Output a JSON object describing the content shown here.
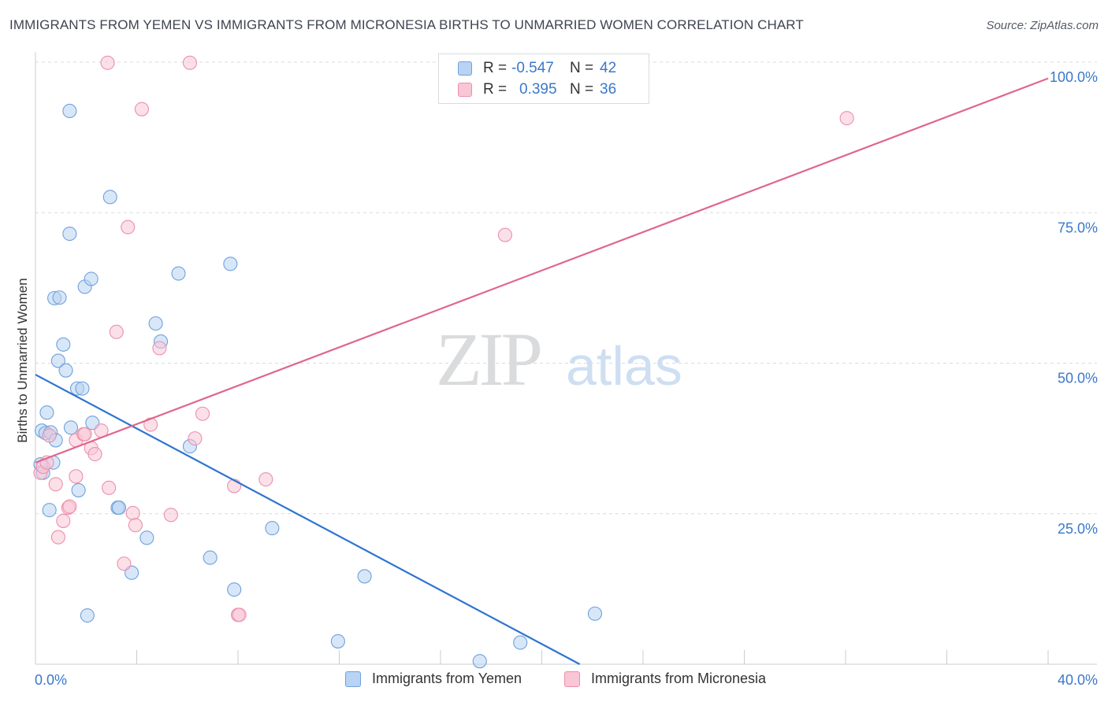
{
  "title": "IMMIGRANTS FROM YEMEN VS IMMIGRANTS FROM MICRONESIA BIRTHS TO UNMARRIED WOMEN CORRELATION CHART",
  "source": "Source: ZipAtlas.com",
  "watermark": {
    "zip": "ZIP",
    "atlas": "atlas"
  },
  "colors": {
    "yemen_fill": "#b8d3f3",
    "yemen_stroke": "#6fa1db",
    "yemen_line": "#2f74d0",
    "micronesia_fill": "#f8c6d5",
    "micronesia_stroke": "#ec8fae",
    "micronesia_line": "#e0668f",
    "axis_text": "#3a78c9",
    "grid": "#d8dbe0"
  },
  "legend": {
    "yemen": {
      "r_label": "R =",
      "r_value": "-0.547",
      "n_label": "N =",
      "n_value": "42"
    },
    "micronesia": {
      "r_label": "R =",
      "r_value": "0.395",
      "n_label": "N =",
      "n_value": "36"
    }
  },
  "chart_data": {
    "type": "scatter",
    "title": "IMMIGRANTS FROM YEMEN VS IMMIGRANTS FROM MICRONESIA BIRTHS TO UNMARRIED WOMEN CORRELATION CHART",
    "xlabel": "",
    "ylabel": "Births to Unmarried Women",
    "xlim": [
      0,
      40
    ],
    "ylim": [
      0,
      100
    ],
    "x_tick_labels": [
      "0.0%",
      "40.0%"
    ],
    "y_tick_labels": [
      "25.0%",
      "50.0%",
      "75.0%",
      "100.0%"
    ],
    "y_ticks": [
      25,
      50,
      75,
      100
    ],
    "grid": true,
    "legend_position": "top-center",
    "series": [
      {
        "name": "Immigrants from Yemen",
        "r": -0.547,
        "n": 42,
        "trend": {
          "x": [
            0,
            21.5
          ],
          "y": [
            48.1,
            0
          ]
        },
        "points": [
          [
            0.2,
            33.2
          ],
          [
            0.3,
            31.8
          ],
          [
            0.25,
            38.8
          ],
          [
            0.4,
            38.4
          ],
          [
            0.45,
            41.8
          ],
          [
            0.6,
            38.5
          ],
          [
            0.7,
            33.5
          ],
          [
            0.8,
            37.2
          ],
          [
            0.55,
            25.6
          ],
          [
            0.75,
            60.8
          ],
          [
            0.95,
            60.9
          ],
          [
            0.9,
            50.4
          ],
          [
            1.1,
            53.1
          ],
          [
            1.2,
            48.8
          ],
          [
            1.35,
            71.5
          ],
          [
            1.4,
            39.3
          ],
          [
            1.65,
            45.8
          ],
          [
            1.85,
            45.8
          ],
          [
            1.95,
            62.7
          ],
          [
            2.2,
            64.0
          ],
          [
            2.25,
            40.1
          ],
          [
            1.7,
            28.9
          ],
          [
            2.05,
            8.1
          ],
          [
            2.95,
            77.6
          ],
          [
            1.35,
            91.9
          ],
          [
            3.25,
            26.0
          ],
          [
            3.3,
            26.0
          ],
          [
            3.8,
            15.2
          ],
          [
            4.4,
            21.0
          ],
          [
            4.75,
            56.6
          ],
          [
            4.95,
            53.6
          ],
          [
            5.65,
            64.9
          ],
          [
            6.1,
            36.2
          ],
          [
            6.9,
            17.7
          ],
          [
            7.7,
            66.5
          ],
          [
            7.85,
            12.4
          ],
          [
            9.35,
            22.6
          ],
          [
            11.95,
            3.8
          ],
          [
            13,
            14.6
          ],
          [
            17.55,
            0.5
          ],
          [
            19.15,
            3.6
          ],
          [
            22.1,
            8.4
          ]
        ]
      },
      {
        "name": "Immigrants from Micronesia",
        "r": 0.395,
        "n": 36,
        "trend": {
          "x": [
            0,
            40
          ],
          "y": [
            33.5,
            97.3
          ]
        },
        "points": [
          [
            0.2,
            31.8
          ],
          [
            0.3,
            32.8
          ],
          [
            0.45,
            33.5
          ],
          [
            0.55,
            38.0
          ],
          [
            0.8,
            29.9
          ],
          [
            0.9,
            21.1
          ],
          [
            1.1,
            23.8
          ],
          [
            1.3,
            26.0
          ],
          [
            1.35,
            26.2
          ],
          [
            1.6,
            31.2
          ],
          [
            1.6,
            37.2
          ],
          [
            1.9,
            38.2
          ],
          [
            1.95,
            38.2
          ],
          [
            2.2,
            35.9
          ],
          [
            2.35,
            34.9
          ],
          [
            2.6,
            38.8
          ],
          [
            2.9,
            29.3
          ],
          [
            2.85,
            99.9
          ],
          [
            3.2,
            55.2
          ],
          [
            3.5,
            16.7
          ],
          [
            3.65,
            72.6
          ],
          [
            3.85,
            25.1
          ],
          [
            3.95,
            23.1
          ],
          [
            4.2,
            92.2
          ],
          [
            4.55,
            39.8
          ],
          [
            4.9,
            52.5
          ],
          [
            5.35,
            24.8
          ],
          [
            6.1,
            99.9
          ],
          [
            6.3,
            37.5
          ],
          [
            6.6,
            41.6
          ],
          [
            7.85,
            29.6
          ],
          [
            8.0,
            8.2
          ],
          [
            8.05,
            8.2
          ],
          [
            9.1,
            30.7
          ],
          [
            18.55,
            71.3
          ],
          [
            32.05,
            90.7
          ]
        ]
      }
    ]
  },
  "bottom_legend": {
    "yemen_label": "Immigrants from Yemen",
    "micronesia_label": "Immigrants from Micronesia"
  }
}
